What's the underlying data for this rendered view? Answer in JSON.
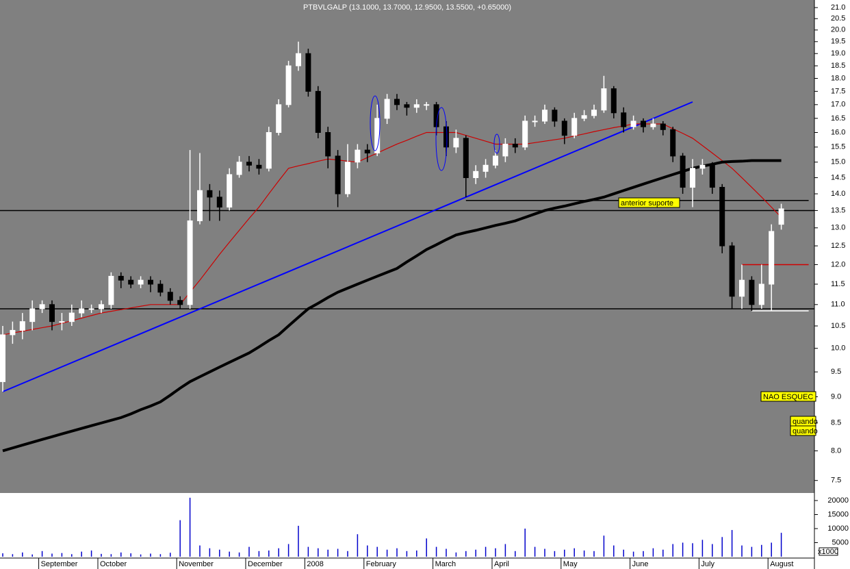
{
  "chart_data": {
    "type": "candlestick",
    "title": "PTBVLGALP (13.1000, 13.7000, 12.9500, 13.5500, +0.65000)",
    "log_scale": true,
    "categories": [
      null,
      null,
      null,
      null,
      "September",
      null,
      null,
      null,
      null,
      null,
      "October",
      null,
      null,
      null,
      null,
      null,
      null,
      null,
      "November",
      null,
      null,
      null,
      null,
      null,
      null,
      "December",
      null,
      null,
      null,
      null,
      null,
      "2008",
      null,
      null,
      null,
      null,
      null,
      "February",
      null,
      null,
      null,
      null,
      null,
      null,
      "March",
      null,
      null,
      null,
      null,
      null,
      "April",
      null,
      null,
      null,
      null,
      null,
      null,
      "May",
      null,
      null,
      null,
      null,
      null,
      null,
      "June",
      null,
      null,
      null,
      null,
      null,
      null,
      "July",
      null,
      null,
      null,
      null,
      null,
      null,
      "August",
      null
    ],
    "open": [
      9.3,
      10.3,
      10.4,
      10.6,
      10.9,
      11.0,
      10.6,
      10.6,
      10.8,
      10.9,
      10.9,
      11.0,
      11.7,
      11.6,
      11.5,
      11.6,
      11.5,
      11.3,
      11.1,
      11.0,
      13.2,
      14.1,
      13.9,
      13.6,
      14.6,
      15.0,
      14.9,
      14.8,
      16.0,
      17.0,
      18.5,
      19.0,
      17.5,
      16.0,
      15.2,
      14.0,
      15.0,
      15.4,
      15.3,
      16.5,
      17.2,
      17.0,
      16.9,
      17.0,
      17.0,
      16.2,
      15.5,
      15.8,
      14.5,
      14.7,
      14.9,
      15.2,
      15.6,
      15.5,
      16.4,
      16.4,
      16.8,
      16.4,
      15.9,
      16.5,
      16.6,
      16.8,
      17.6,
      16.7,
      16.2,
      16.4,
      16.2,
      16.3,
      16.1,
      15.2,
      14.2,
      14.8,
      14.9,
      14.2,
      12.5,
      11.2,
      11.6,
      11.0,
      11.5,
      13.1
    ],
    "high": [
      10.5,
      10.6,
      10.8,
      11.1,
      11.1,
      11.1,
      10.8,
      11.0,
      11.1,
      11.0,
      11.1,
      11.8,
      11.8,
      11.7,
      11.7,
      11.7,
      11.6,
      11.4,
      11.2,
      15.4,
      15.3,
      14.3,
      14.1,
      14.8,
      15.2,
      15.2,
      15.1,
      16.2,
      17.2,
      18.7,
      19.5,
      19.2,
      17.7,
      16.2,
      15.4,
      15.6,
      15.6,
      15.6,
      17.0,
      17.4,
      17.4,
      17.1,
      17.2,
      17.1,
      17.1,
      16.4,
      16.1,
      15.9,
      14.9,
      15.1,
      15.4,
      15.8,
      15.8,
      16.6,
      16.6,
      17.0,
      16.9,
      16.5,
      16.7,
      16.8,
      17.0,
      18.1,
      17.7,
      16.9,
      16.6,
      16.5,
      16.5,
      16.4,
      16.2,
      15.3,
      15.1,
      15.1,
      15.0,
      14.3,
      12.6,
      12.0,
      11.7,
      12.0,
      13.1,
      13.7
    ],
    "low": [
      9.1,
      10.1,
      10.2,
      10.4,
      10.8,
      10.4,
      10.4,
      10.5,
      10.7,
      10.8,
      10.8,
      10.9,
      11.4,
      11.4,
      11.4,
      11.3,
      11.2,
      11.0,
      10.9,
      10.9,
      13.1,
      13.2,
      13.2,
      13.5,
      14.5,
      14.7,
      14.6,
      14.7,
      15.9,
      16.9,
      18.3,
      17.3,
      15.8,
      14.8,
      13.6,
      13.9,
      14.8,
      15.0,
      15.2,
      16.3,
      16.8,
      16.6,
      16.7,
      16.8,
      15.9,
      15.2,
      15.3,
      13.9,
      14.3,
      14.5,
      14.8,
      15.0,
      15.3,
      15.4,
      16.2,
      16.3,
      16.2,
      15.6,
      15.8,
      16.4,
      16.5,
      16.7,
      16.5,
      16.0,
      16.1,
      16.0,
      16.1,
      15.9,
      15.0,
      14.0,
      13.6,
      14.6,
      14.0,
      12.3,
      10.9,
      10.9,
      10.85,
      10.9,
      10.85,
      12.95
    ],
    "close": [
      10.3,
      10.4,
      10.6,
      10.9,
      11.0,
      10.6,
      10.6,
      10.8,
      10.9,
      10.9,
      11.0,
      11.7,
      11.6,
      11.5,
      11.6,
      11.5,
      11.3,
      11.1,
      11.0,
      13.2,
      14.1,
      13.9,
      13.6,
      14.6,
      15.0,
      14.9,
      14.8,
      16.0,
      17.0,
      18.5,
      19.0,
      17.5,
      16.0,
      15.2,
      14.0,
      15.0,
      15.4,
      15.3,
      16.5,
      17.2,
      17.0,
      16.9,
      17.0,
      17.0,
      16.2,
      15.5,
      15.8,
      14.5,
      14.7,
      14.9,
      15.2,
      15.6,
      15.5,
      16.4,
      16.4,
      16.8,
      16.4,
      15.9,
      16.5,
      16.6,
      16.8,
      17.6,
      16.7,
      16.2,
      16.4,
      16.2,
      16.3,
      16.1,
      15.2,
      14.2,
      14.8,
      14.9,
      14.2,
      12.5,
      11.2,
      11.6,
      11.0,
      11.5,
      12.9,
      13.55
    ],
    "up_color": "#ffffff",
    "down_color": "#000000",
    "overlays": [
      {
        "color": "#cc0000",
        "values": [
          10.3,
          10.34,
          10.38,
          10.42,
          10.46,
          10.5,
          10.56,
          10.62,
          10.68,
          10.74,
          10.8,
          10.84,
          10.88,
          10.92,
          10.96,
          11.0,
          11.0,
          11.0,
          11.0,
          11.3,
          11.6,
          11.93,
          12.27,
          12.6,
          12.93,
          13.27,
          13.6,
          14.0,
          14.4,
          14.8,
          14.88,
          14.95,
          15.03,
          15.1,
          15.07,
          15.03,
          15.0,
          15.15,
          15.3,
          15.45,
          15.6,
          15.73,
          15.87,
          16.0,
          16.0,
          16.0,
          16.0,
          15.9,
          15.8,
          15.7,
          15.6,
          15.6,
          15.6,
          15.6,
          15.65,
          15.7,
          15.75,
          15.8,
          15.88,
          15.95,
          16.03,
          16.1,
          16.17,
          16.23,
          16.3,
          16.3,
          16.3,
          16.3,
          16.13,
          15.97,
          15.8,
          15.55,
          15.3,
          15.05,
          14.8,
          14.5,
          14.2,
          13.9,
          13.6,
          13.3
        ]
      },
      {
        "color": "#000000",
        "values": [
          8.0,
          8.05,
          8.1,
          8.15,
          8.2,
          8.25,
          8.3,
          8.35,
          8.4,
          8.45,
          8.5,
          8.55,
          8.6,
          8.67,
          8.75,
          8.82,
          8.9,
          9.03,
          9.17,
          9.3,
          9.4,
          9.5,
          9.6,
          9.7,
          9.8,
          9.9,
          10.03,
          10.17,
          10.3,
          10.5,
          10.7,
          10.9,
          11.03,
          11.17,
          11.3,
          11.4,
          11.5,
          11.6,
          11.7,
          11.8,
          11.9,
          12.07,
          12.23,
          12.4,
          12.53,
          12.67,
          12.8,
          12.87,
          12.93,
          13.0,
          13.07,
          13.13,
          13.2,
          13.3,
          13.4,
          13.5,
          13.57,
          13.63,
          13.7,
          13.77,
          13.83,
          13.9,
          14.0,
          14.1,
          14.2,
          14.3,
          14.4,
          14.5,
          14.6,
          14.7,
          14.8,
          14.87,
          14.93,
          15.0,
          15.02,
          15.03,
          15.05,
          15.05,
          15.05,
          15.05
        ]
      }
    ],
    "trendline": {
      "color": "#0000ff",
      "x": [
        0,
        70
      ],
      "values": [
        9.1,
        17.1
      ]
    },
    "levels": [
      {
        "value": 13.5,
        "color": "#000000"
      },
      {
        "value": 10.9,
        "color": "#000000"
      },
      {
        "value": 13.8,
        "color": "#000000",
        "x": [
          47,
          79
        ]
      },
      {
        "value": 12.0,
        "color": "#d00000",
        "x": [
          75,
          79
        ]
      },
      {
        "value": 10.85,
        "color": "#ffffff",
        "x": [
          76,
          79
        ]
      }
    ],
    "annotations": [
      "anterior suporte",
      "NAO ESQUEC",
      "quando",
      "quando"
    ],
    "ylim": [
      7.32,
      21.35
    ],
    "yticks": [
      {
        "value": 21,
        "label": "21.0"
      },
      20.5,
      {
        "value": 20,
        "label": "20.0"
      },
      19.5,
      {
        "value": 19,
        "label": "19.0"
      },
      18.5,
      {
        "value": 18,
        "label": "18.0"
      },
      17.5,
      {
        "value": 17,
        "label": "17.0"
      },
      16.5,
      {
        "value": 16,
        "label": "16.0"
      },
      15.5,
      {
        "value": 15,
        "label": "15.0"
      },
      14.5,
      {
        "value": 14,
        "label": "14.0"
      },
      13.5,
      {
        "value": 13,
        "label": "13.0"
      },
      12.5,
      {
        "value": 12,
        "label": "12.0"
      },
      11.5,
      {
        "value": 11,
        "label": "11.0"
      },
      10.5,
      {
        "value": 10,
        "label": "10.0"
      },
      9.5,
      {
        "value": 9,
        "label": "9.0"
      },
      8.5,
      {
        "value": 8,
        "label": "8.0"
      },
      7.5
    ],
    "volume": {
      "color": "#0000cc",
      "unit_label": "x1000",
      "values": [
        1200,
        900,
        1500,
        800,
        2000,
        1100,
        1300,
        900,
        1800,
        2200,
        1000,
        900,
        1500,
        1200,
        800,
        1100,
        900,
        1400,
        13000,
        21000,
        4000,
        3000,
        2500,
        1800,
        1500,
        3500,
        2000,
        2200,
        3000,
        4500,
        11000,
        3500,
        3000,
        2500,
        2800,
        2000,
        8000,
        4000,
        3500,
        2500,
        3000,
        2000,
        2200,
        6500,
        3500,
        2800,
        1500,
        2000,
        2500,
        3500,
        3000,
        4500,
        2000,
        10000,
        3500,
        2800,
        2000,
        2500,
        3000,
        2200,
        2000,
        7500,
        4000,
        2500,
        1800,
        2000,
        3000,
        2500,
        4500,
        5000,
        4800,
        6000,
        4500,
        7000,
        9500,
        4000,
        3500,
        4200,
        5000,
        8500
      ],
      "ylim": [
        0,
        22000
      ],
      "yticks": [
        5000,
        10000,
        15000,
        20000
      ]
    }
  }
}
